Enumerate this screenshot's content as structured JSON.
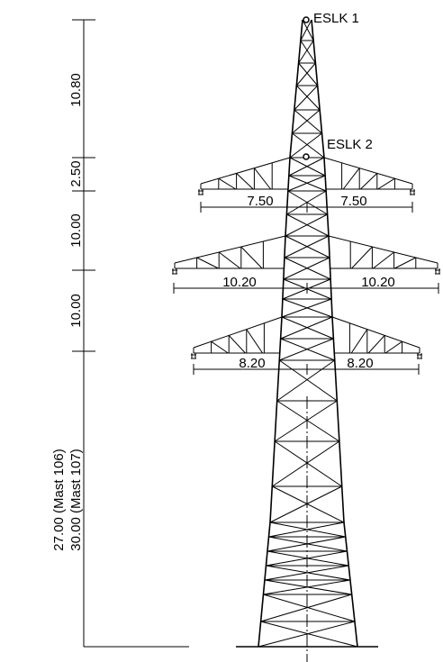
{
  "eslk_labels": [
    "ESLK 1",
    "ESLK 2"
  ],
  "height_dimensions": [
    "10.80",
    "2.50",
    "10.00",
    "10.00"
  ],
  "mast_heights": [
    "27.00 (Mast 106)",
    "30.00 (Mast 107)"
  ],
  "crossarm_dimensions": {
    "top": [
      "7.50",
      "7.50"
    ],
    "middle": [
      "10.20",
      "10.20"
    ],
    "bottom": [
      "8.20",
      "8.20"
    ]
  }
}
